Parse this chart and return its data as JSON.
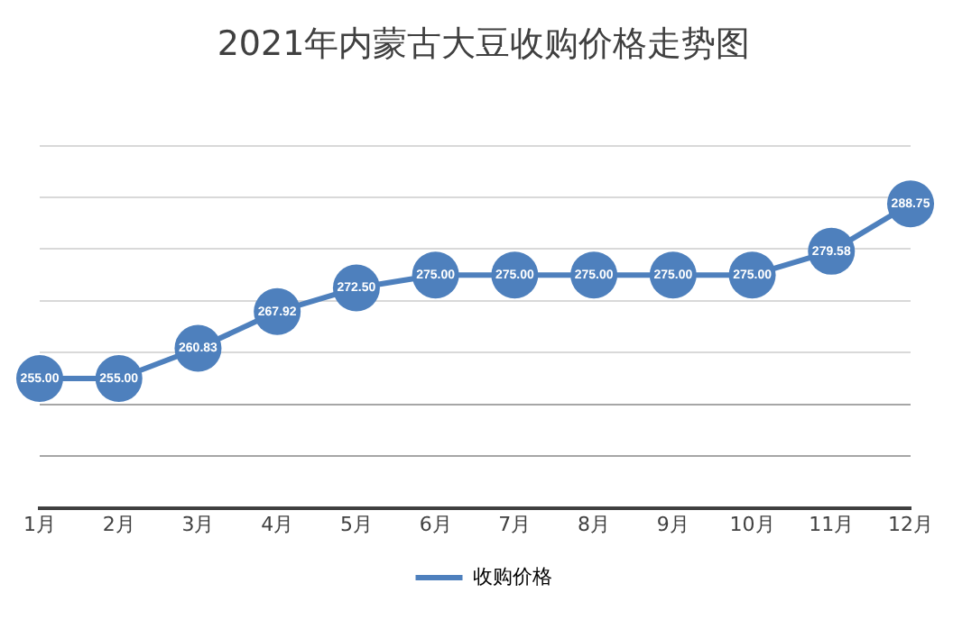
{
  "chart_data": {
    "type": "line",
    "title": "2021年内蒙古大豆收购价格走势图",
    "categories": [
      "1月",
      "2月",
      "3月",
      "4月",
      "5月",
      "6月",
      "7月",
      "8月",
      "9月",
      "10月",
      "11月",
      "12月"
    ],
    "series": [
      {
        "name": "收购价格",
        "color": "#4e80bd",
        "values": [
          255.0,
          255.0,
          260.83,
          267.92,
          272.5,
          275.0,
          275.0,
          275.0,
          275.0,
          275.0,
          279.58,
          288.75
        ],
        "value_labels": [
          "255.00",
          "255.00",
          "260.83",
          "267.92",
          "272.50",
          "275.00",
          "275.00",
          "275.00",
          "275.00",
          "275.00",
          "279.58",
          "288.75"
        ]
      }
    ],
    "ylim": [
      230,
      300
    ],
    "yticks": [
      {
        "value": 230,
        "label": null
      },
      {
        "value": 240,
        "label": null
      },
      {
        "value": 250,
        "label": null
      },
      {
        "value": 260,
        "label": null
      },
      {
        "value": 270,
        "label": null
      },
      {
        "value": 280,
        "label": null
      },
      {
        "value": 290,
        "label": null
      },
      {
        "value": 300,
        "label": null
      }
    ],
    "tick_labels": "x",
    "grid": "y",
    "legend": "bottom",
    "marker": "circle",
    "line_style": "solid"
  }
}
